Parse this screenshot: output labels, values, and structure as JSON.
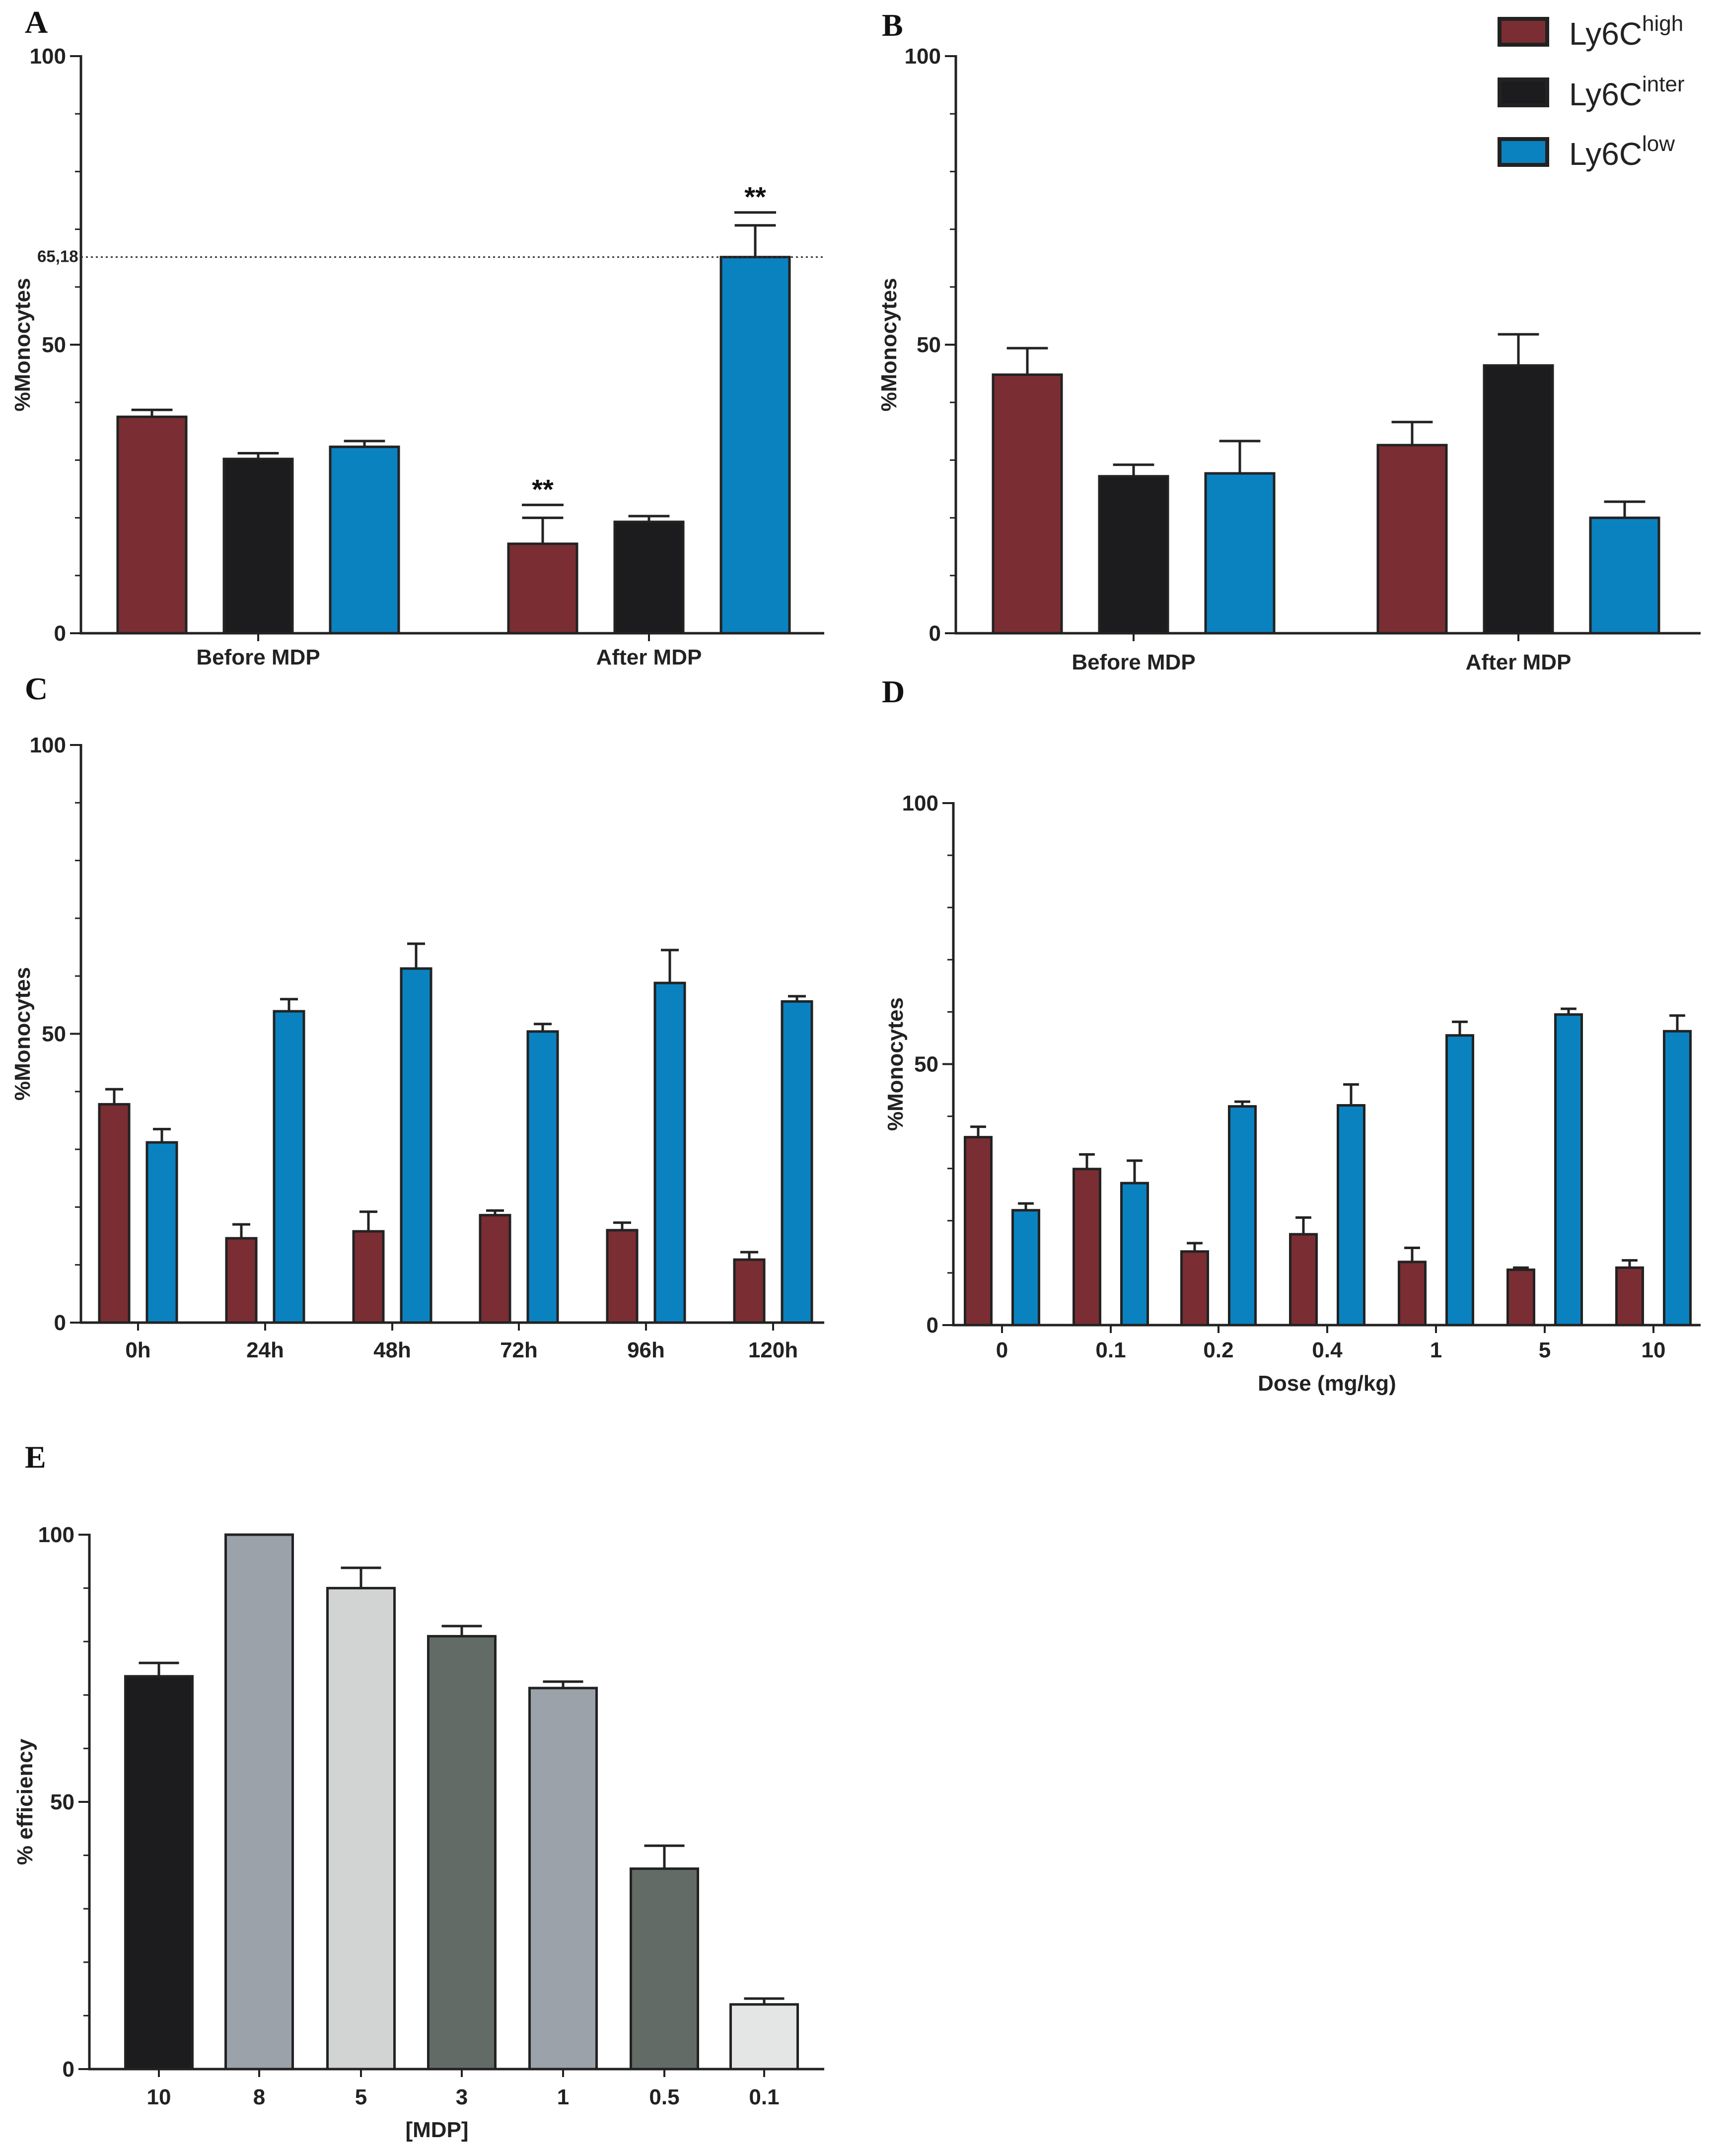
{
  "colors": {
    "Ly6C_high": "#7a2e33",
    "Ly6C_inter": "#1c1c1e",
    "Ly6C_low": "#0a82c0"
  },
  "legend": {
    "items": [
      {
        "base": "Ly6C",
        "sup": "high",
        "color": "#7a2e33"
      },
      {
        "base": "Ly6C",
        "sup": "inter",
        "color": "#1c1c1e"
      },
      {
        "base": "Ly6C",
        "sup": "low",
        "color": "#0a82c0"
      }
    ]
  },
  "chart_data": [
    {
      "panel": "A",
      "type": "bar",
      "ylabel": "%Monocytes",
      "xlabel": "",
      "ylim": [
        0,
        100
      ],
      "yticks": [
        0,
        50,
        100
      ],
      "categories": [
        "Before MDP",
        "After MDP"
      ],
      "series": [
        {
          "name": "Ly6Chigh",
          "color": "#7a2e33",
          "values": [
            37.5,
            15.5
          ],
          "errors": [
            1.2,
            4.5
          ]
        },
        {
          "name": "Ly6Cinter",
          "color": "#1c1c1e",
          "values": [
            30.2,
            19.3
          ],
          "errors": [
            1.0,
            1.0
          ]
        },
        {
          "name": "Ly6Clow",
          "color": "#0a82c0",
          "values": [
            32.3,
            65.18
          ],
          "errors": [
            1.0,
            5.5
          ]
        }
      ],
      "reference_line": {
        "value": 65.18,
        "label": "65,18"
      },
      "significance": [
        {
          "category": "After MDP",
          "series": "Ly6Chigh",
          "label": "**"
        },
        {
          "category": "After MDP",
          "series": "Ly6Clow",
          "label": "**"
        }
      ]
    },
    {
      "panel": "B",
      "type": "bar",
      "ylabel": "%Monocytes",
      "xlabel": "",
      "ylim": [
        0,
        100
      ],
      "yticks": [
        0,
        50,
        100
      ],
      "categories": [
        "Before MDP",
        "After MDP"
      ],
      "series": [
        {
          "name": "Ly6Chigh",
          "color": "#7a2e33",
          "values": [
            44.8,
            32.6
          ],
          "errors": [
            4.6,
            4.0
          ]
        },
        {
          "name": "Ly6Cinter",
          "color": "#1c1c1e",
          "values": [
            27.2,
            46.4
          ],
          "errors": [
            2.0,
            5.4
          ]
        },
        {
          "name": "Ly6Clow",
          "color": "#0a82c0",
          "values": [
            27.7,
            20.0
          ],
          "errors": [
            5.6,
            2.8
          ]
        }
      ]
    },
    {
      "panel": "C",
      "type": "bar",
      "ylabel": "%Monocytes",
      "xlabel": "",
      "ylim": [
        0,
        100
      ],
      "yticks": [
        0,
        50,
        100
      ],
      "categories": [
        "0h",
        "24h",
        "48h",
        "72h",
        "96h",
        "120h"
      ],
      "series": [
        {
          "name": "Ly6Chigh",
          "color": "#7a2e33",
          "values": [
            37.8,
            14.6,
            15.8,
            18.6,
            16.0,
            10.9
          ],
          "errors": [
            2.6,
            2.4,
            3.4,
            0.8,
            1.3,
            1.3
          ]
        },
        {
          "name": "Ly6Clow",
          "color": "#0a82c0",
          "values": [
            31.2,
            53.9,
            61.3,
            50.4,
            58.8,
            55.6
          ],
          "errors": [
            2.3,
            2.1,
            4.3,
            1.3,
            5.7,
            0.9
          ]
        }
      ]
    },
    {
      "panel": "D",
      "type": "bar",
      "ylabel": "%Monocytes",
      "xlabel": "Dose (mg/kg)",
      "ylim": [
        0,
        100
      ],
      "yticks": [
        0,
        50,
        100
      ],
      "categories": [
        "0",
        "0.1",
        "0.2",
        "0.4",
        "1",
        "5",
        "10"
      ],
      "series": [
        {
          "name": "Ly6Chigh",
          "color": "#7a2e33",
          "values": [
            36.0,
            29.9,
            14.1,
            17.4,
            12.1,
            10.6,
            11.0
          ],
          "errors": [
            2.0,
            2.8,
            1.6,
            3.2,
            2.7,
            0.4,
            1.4
          ]
        },
        {
          "name": "Ly6Clow",
          "color": "#0a82c0",
          "values": [
            22.0,
            27.2,
            41.9,
            42.1,
            55.5,
            59.5,
            56.3
          ],
          "errors": [
            1.3,
            4.3,
            0.9,
            4.0,
            2.6,
            1.1,
            3.0
          ]
        }
      ]
    },
    {
      "panel": "E",
      "type": "bar",
      "ylabel": "% efficiency",
      "xlabel": "[MDP]",
      "ylim": [
        0,
        100
      ],
      "yticks": [
        0,
        50,
        100
      ],
      "categories": [
        "10",
        "8",
        "5",
        "3",
        "1",
        "0.5",
        "0.1"
      ],
      "colors": [
        "#1c1c1e",
        "#9ba2aa",
        "#d2d4d4",
        "#636b67",
        "#9ba2aa",
        "#636b67",
        "#e4e5e5"
      ],
      "values": [
        73.5,
        100,
        90.0,
        81.0,
        71.3,
        37.5,
        12.1
      ],
      "errors": [
        2.5,
        0,
        3.8,
        1.9,
        1.2,
        4.3,
        1.1
      ]
    }
  ]
}
